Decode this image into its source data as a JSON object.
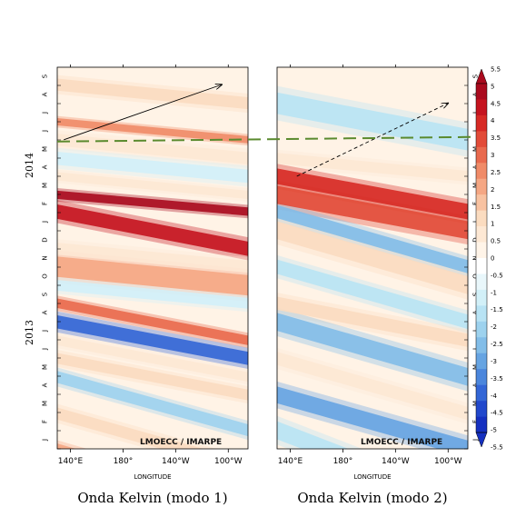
{
  "figure": {
    "credit": "LMOECC / IMARPE",
    "xaxis_title": "LONGITUDE",
    "colors": {
      "phase_line": "#5a8a2e",
      "arrow": "#000000"
    }
  },
  "chart_data": [
    {
      "type": "heatmap",
      "title": "Onda Kelvin (modo 1)",
      "xlabel": "LONGITUDE",
      "ylabel": "",
      "x_ticks": [
        "140°E",
        "180°",
        "140°W",
        "100°W"
      ],
      "x_range": [
        "130°E",
        "85°W"
      ],
      "y_months": [
        "J",
        "F",
        "M",
        "A",
        "M",
        "J",
        "J",
        "A",
        "S",
        "O",
        "N",
        "D",
        "J",
        "F",
        "M",
        "A",
        "M",
        "J",
        "J",
        "A",
        "S"
      ],
      "y_years": [
        "2013",
        "2014"
      ],
      "y_range": [
        "2013-01",
        "2014-09"
      ],
      "phase_line_time": "2014-06",
      "arrow": {
        "style": "solid",
        "from": [
          "135°E",
          "2014-06"
        ],
        "to": [
          "105°W",
          "2014-09"
        ]
      },
      "bands": [
        {
          "anomaly": 2.5,
          "at_130E": "2013-01",
          "at_85W": "2012-10",
          "width_days": 18
        },
        {
          "anomaly": 1.5,
          "at_130E": "2013-03",
          "at_85W": "2012-12",
          "width_days": 20
        },
        {
          "anomaly": -2.0,
          "at_130E": "2013-05",
          "at_85W": "2013-02",
          "width_days": 20
        },
        {
          "anomaly": 1.5,
          "at_130E": "2013-06",
          "at_85W": "2013-04",
          "width_days": 18
        },
        {
          "anomaly": 1.0,
          "at_130E": "2013-07",
          "at_85W": "2013-05",
          "width_days": 16
        },
        {
          "anomaly": -4.0,
          "at_130E": "2013-08",
          "at_85W": "2013-06",
          "width_days": 22
        },
        {
          "anomaly": 3.5,
          "at_130E": "2013-09",
          "at_85W": "2013-07",
          "width_days": 16
        },
        {
          "anomaly": -1.0,
          "at_130E": "2013-10",
          "at_85W": "2013-09",
          "width_days": 18
        },
        {
          "anomaly": 2.5,
          "at_130E": "2013-11",
          "at_85W": "2013-10",
          "width_days": 34
        },
        {
          "anomaly": 0.8,
          "at_130E": "2013-12",
          "at_85W": "2013-11",
          "width_days": 20
        },
        {
          "anomaly": 5.0,
          "at_130E": "2014-02",
          "at_85W": "2013-12",
          "width_days": 24
        },
        {
          "anomaly": 5.5,
          "at_130E": "2014-03",
          "at_85W": "2014-02",
          "width_days": 14
        },
        {
          "anomaly": 1.0,
          "at_130E": "2014-04",
          "at_85W": "2014-03",
          "width_days": 14
        },
        {
          "anomaly": -1.0,
          "at_130E": "2014-05",
          "at_85W": "2014-04",
          "width_days": 22
        },
        {
          "anomaly": 1.0,
          "at_130E": "2014-06",
          "at_85W": "2014-05",
          "width_days": 20
        },
        {
          "anomaly": 3.0,
          "at_130E": "2014-07",
          "at_85W": "2014-06",
          "width_days": 12
        },
        {
          "anomaly": 1.5,
          "at_130E": "2014-09",
          "at_85W": "2014-08",
          "width_days": 20
        }
      ]
    },
    {
      "type": "heatmap",
      "title": "Onda Kelvin (modo 2)",
      "xlabel": "LONGITUDE",
      "ylabel": "",
      "x_ticks": [
        "140°E",
        "180°",
        "140°W",
        "100°W"
      ],
      "x_range": [
        "130°E",
        "85°W"
      ],
      "y_months": [
        "J",
        "F",
        "M",
        "A",
        "M",
        "J",
        "J",
        "A",
        "S",
        "O",
        "N",
        "D",
        "J",
        "F",
        "M",
        "A",
        "M",
        "J",
        "J",
        "A",
        "S"
      ],
      "y_years": [
        "2013",
        "2014"
      ],
      "y_range": [
        "2013-01",
        "2014-09"
      ],
      "phase_line_time": "2014-06",
      "arrow": {
        "style": "dashed",
        "from": [
          "145°E",
          "2014-04"
        ],
        "to": [
          "100°W",
          "2014-08"
        ]
      },
      "bands": [
        {
          "anomaly": -1.5,
          "at_130E": "2013-02",
          "at_85W": "2012-10",
          "width_days": 30
        },
        {
          "anomaly": -3.0,
          "at_130E": "2013-04",
          "at_85W": "2013-01",
          "width_days": 28
        },
        {
          "anomaly": 0.8,
          "at_130E": "2013-06",
          "at_85W": "2013-03",
          "width_days": 22
        },
        {
          "anomaly": -2.5,
          "at_130E": "2013-08",
          "at_85W": "2013-05",
          "width_days": 30
        },
        {
          "anomaly": 1.5,
          "at_130E": "2013-09",
          "at_85W": "2013-07",
          "width_days": 22
        },
        {
          "anomaly": -1.5,
          "at_130E": "2013-11",
          "at_85W": "2013-08",
          "width_days": 24
        },
        {
          "anomaly": 1.5,
          "at_130E": "2014-01",
          "at_85W": "2013-10",
          "width_days": 30
        },
        {
          "anomaly": -2.5,
          "at_130E": "2014-02",
          "at_85W": "2013-11",
          "width_days": 22
        },
        {
          "anomaly": 4.0,
          "at_130E": "2014-03",
          "at_85W": "2014-01",
          "width_days": 30
        },
        {
          "anomaly": 4.5,
          "at_130E": "2014-04",
          "at_85W": "2014-02",
          "width_days": 26
        },
        {
          "anomaly": 0.8,
          "at_130E": "2014-05",
          "at_85W": "2014-04",
          "width_days": 18
        },
        {
          "anomaly": -1.5,
          "at_130E": "2014-08",
          "at_85W": "2014-06",
          "width_days": 36
        }
      ]
    }
  ],
  "colorbar": {
    "labels": [
      "5.5",
      "5",
      "4.5",
      "4",
      "3.5",
      "3",
      "2.5",
      "2",
      "1.5",
      "1",
      "0.5",
      "0",
      "-0.5",
      "-1",
      "-1.5",
      "-2",
      "-2.5",
      "-3",
      "-3.5",
      "-4",
      "-4.5",
      "-5",
      "-5.5"
    ],
    "colors": [
      "#aa0a1e",
      "#c5141f",
      "#d72a25",
      "#e24b38",
      "#e96a4e",
      "#f08b68",
      "#f5a784",
      "#f8c2a1",
      "#fbdcc0",
      "#fde8d4",
      "#fff4e8",
      "#ffffff",
      "#e9f7fb",
      "#d2f0f8",
      "#b8e3f4",
      "#9dd2ee",
      "#82bde8",
      "#66a4e2",
      "#4b86dc",
      "#3366d6",
      "#2148cc",
      "#1530c0"
    ]
  }
}
